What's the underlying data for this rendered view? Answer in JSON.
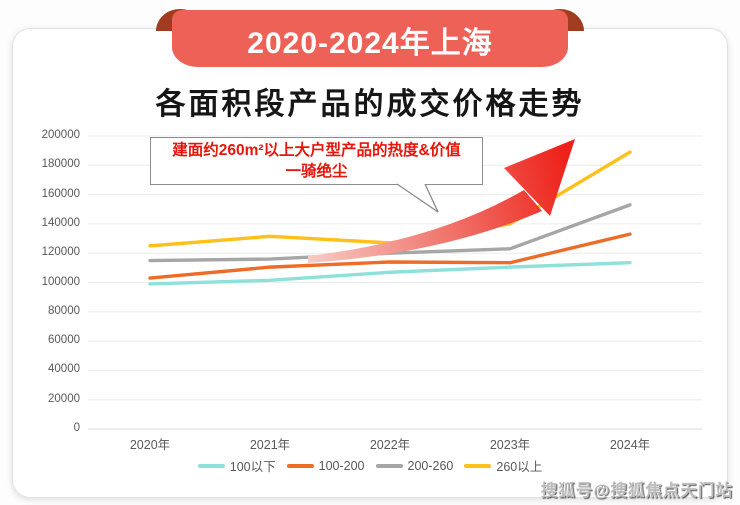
{
  "banner": {
    "label": "2020-2024年上海"
  },
  "title": "各面积段产品的成交价格走势",
  "annotation": {
    "line1": "建面约260m²以上大户型产品的热度&价值",
    "line2": "一骑绝尘"
  },
  "watermark": "搜狐号@搜狐焦点天门站",
  "theme": {
    "ribbon": "#ee6156",
    "ribbon_end": "#a23b20",
    "annotation_red": "#e8150a",
    "arrow_from": "#f8cbc7",
    "arrow_mid": "#f07f76",
    "arrow_to": "#ee2018",
    "axis_text": "#595959",
    "grid": "#ececec",
    "grid_zero": "#d8d8d8"
  },
  "chart_data": {
    "type": "line",
    "title": "各面积段产品的成交价格走势",
    "categories": [
      "2020年",
      "2021年",
      "2022年",
      "2023年",
      "2024年"
    ],
    "series": [
      {
        "name": "100以下",
        "color": "#8ee1da",
        "values": [
          99000,
          101500,
          107000,
          110500,
          113500
        ]
      },
      {
        "name": "100-200",
        "color": "#ed6d28",
        "values": [
          103000,
          110500,
          114000,
          113500,
          133000
        ]
      },
      {
        "name": "200-260",
        "color": "#a6a6a6",
        "values": [
          115000,
          116000,
          120000,
          123000,
          153000
        ]
      },
      {
        "name": "260以上",
        "color": "#ffc01a",
        "values": [
          125000,
          131500,
          127000,
          140000,
          189000
        ]
      }
    ],
    "xlabel": "",
    "ylabel": "",
    "ylim": [
      0,
      200000
    ],
    "ytick_step": 20000,
    "grid": true,
    "legend_position": "bottom"
  }
}
